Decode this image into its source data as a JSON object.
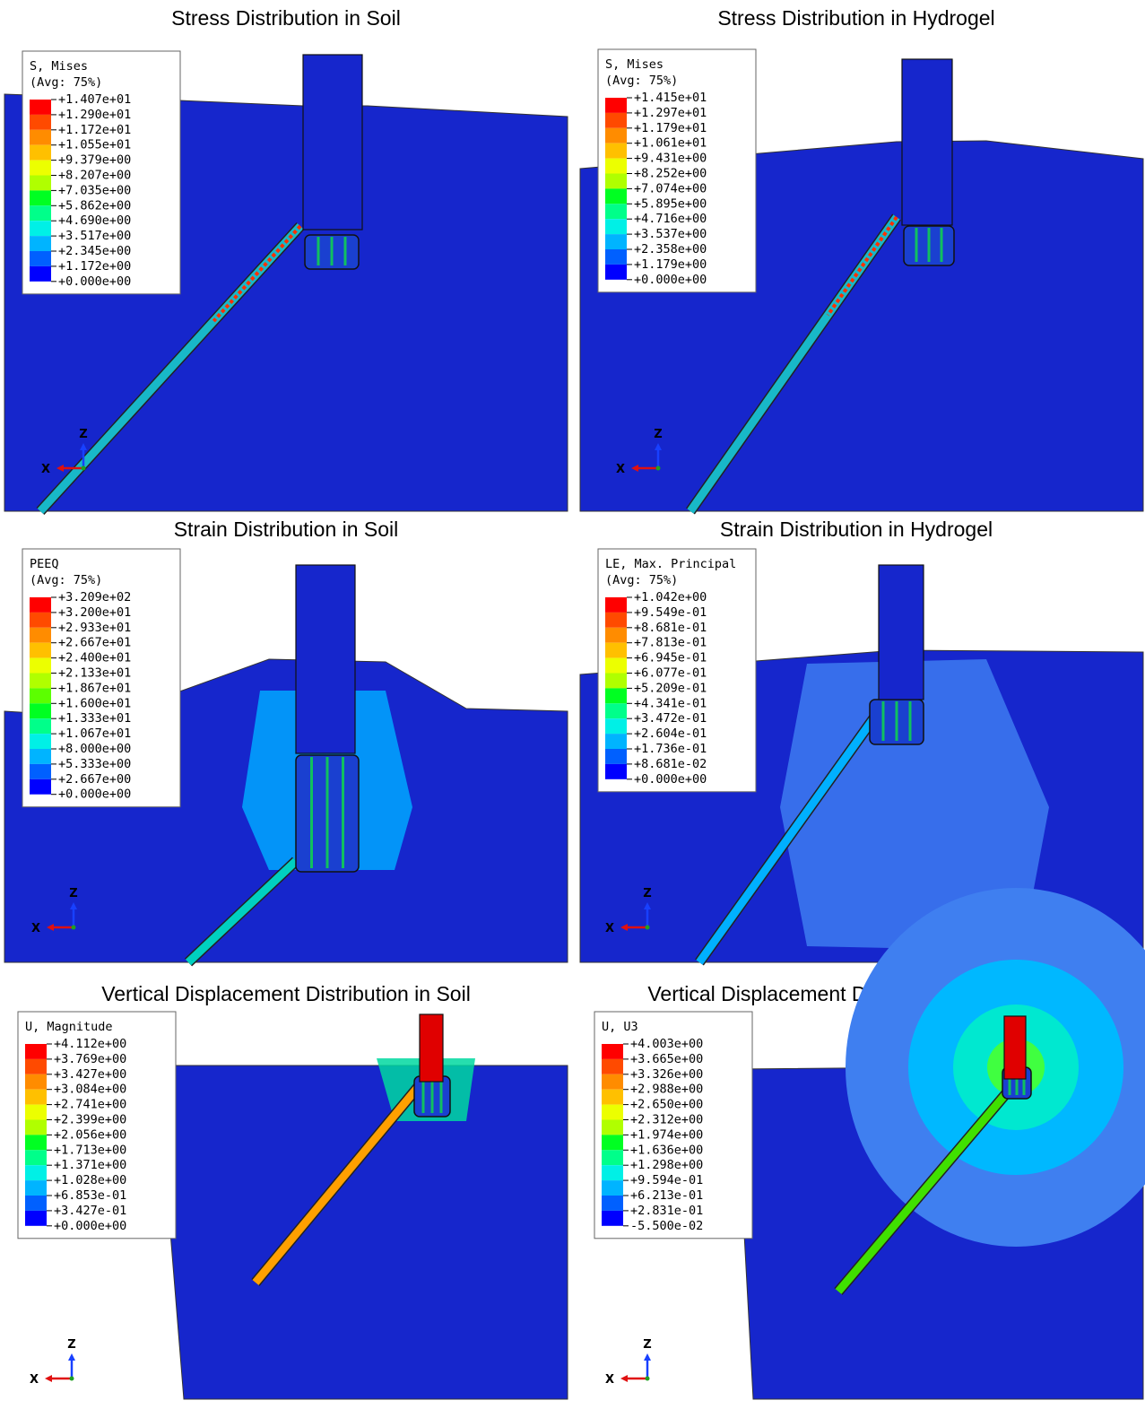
{
  "panels": [
    {
      "title": "Stress Distribution in Soil",
      "legend": {
        "title": [
          "S, Mises",
          "(Avg: 75%)"
        ],
        "values": [
          "+1.407e+01",
          "+1.290e+01",
          "+1.172e+01",
          "+1.055e+01",
          "+9.379e+00",
          "+8.207e+00",
          "+7.035e+00",
          "+5.862e+00",
          "+4.690e+00",
          "+3.517e+00",
          "+2.345e+00",
          "+1.172e+00",
          "+0.000e+00"
        ]
      },
      "axes": {
        "z": "Z",
        "x": "X"
      }
    },
    {
      "title": "Stress Distribution in Hydrogel",
      "legend": {
        "title": [
          "S, Mises",
          "(Avg: 75%)"
        ],
        "values": [
          "+1.415e+01",
          "+1.297e+01",
          "+1.179e+01",
          "+1.061e+01",
          "+9.431e+00",
          "+8.252e+00",
          "+7.074e+00",
          "+5.895e+00",
          "+4.716e+00",
          "+3.537e+00",
          "+2.358e+00",
          "+1.179e+00",
          "+0.000e+00"
        ]
      },
      "axes": {
        "z": "Z",
        "x": "X"
      }
    },
    {
      "title": "Strain Distribution in Soil",
      "legend": {
        "title": [
          "PEEQ",
          "(Avg: 75%)"
        ],
        "values": [
          "+3.209e+02",
          "+3.200e+01",
          "+2.933e+01",
          "+2.667e+01",
          "+2.400e+01",
          "+2.133e+01",
          "+1.867e+01",
          "+1.600e+01",
          "+1.333e+01",
          "+1.067e+01",
          "+8.000e+00",
          "+5.333e+00",
          "+2.667e+00",
          "+0.000e+00"
        ]
      },
      "axes": {
        "z": "Z",
        "x": "X"
      }
    },
    {
      "title": "Strain Distribution in Hydrogel",
      "legend": {
        "title": [
          "LE, Max. Principal",
          "(Avg: 75%)"
        ],
        "values": [
          "+1.042e+00",
          "+9.549e-01",
          "+8.681e-01",
          "+7.813e-01",
          "+6.945e-01",
          "+6.077e-01",
          "+5.209e-01",
          "+4.341e-01",
          "+3.472e-01",
          "+2.604e-01",
          "+1.736e-01",
          "+8.681e-02",
          "+0.000e+00"
        ]
      },
      "axes": {
        "z": "Z",
        "x": "X"
      }
    },
    {
      "title": "Vertical Displacement Distribution in Soil",
      "legend": {
        "title": [
          "U, Magnitude"
        ],
        "values": [
          "+4.112e+00",
          "+3.769e+00",
          "+3.427e+00",
          "+3.084e+00",
          "+2.741e+00",
          "+2.399e+00",
          "+2.056e+00",
          "+1.713e+00",
          "+1.371e+00",
          "+1.028e+00",
          "+6.853e-01",
          "+3.427e-01",
          "+0.000e+00"
        ]
      },
      "axes": {
        "z": "Z",
        "x": "X"
      }
    },
    {
      "title": "Vertical Displacement Distribution in Hydrogel",
      "legend": {
        "title": [
          "U, U3"
        ],
        "values": [
          "+4.003e+00",
          "+3.665e+00",
          "+3.326e+00",
          "+2.988e+00",
          "+2.650e+00",
          "+2.312e+00",
          "+1.974e+00",
          "+1.636e+00",
          "+1.298e+00",
          "+9.594e-01",
          "+6.213e-01",
          "+2.831e-01",
          "-5.500e-02"
        ]
      },
      "axes": {
        "z": "Z",
        "x": "X"
      }
    }
  ],
  "legend_colors": [
    "#ff0000",
    "#ff4a00",
    "#ff8c00",
    "#ffc000",
    "#ecff00",
    "#b0ff00",
    "#5cff00",
    "#00ff22",
    "#00ff8a",
    "#00f0e6",
    "#00b4ff",
    "#0060ff",
    "#0000ff"
  ]
}
